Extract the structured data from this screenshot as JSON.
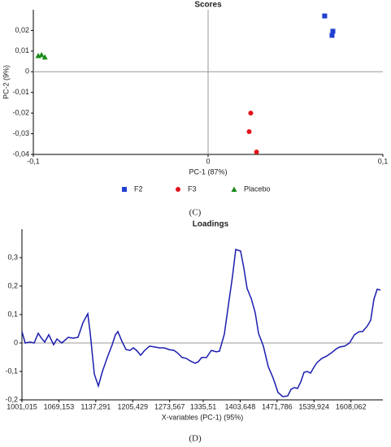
{
  "chart_data": [
    {
      "type": "scatter",
      "title": "Scores",
      "xlabel": "PC-1 (87%)",
      "ylabel": "PC-2 (9%)",
      "xlim": [
        -0.1,
        0.1
      ],
      "ylim": [
        -0.04,
        0.03
      ],
      "xticks": [
        {
          "value": -0.1,
          "label": "-0,1"
        },
        0,
        {
          "value": 0.1,
          "label": "0,1"
        }
      ],
      "yticks": [
        {
          "value": 0.02,
          "label": "0,02"
        },
        {
          "value": 0.01,
          "label": "0,01"
        },
        0,
        {
          "value": -0.01,
          "label": "-0,01"
        },
        {
          "value": -0.02,
          "label": "-0,02"
        },
        {
          "value": -0.03,
          "label": "-0,03"
        },
        {
          "value": -0.04,
          "label": "-0,04"
        }
      ],
      "series": [
        {
          "name": "F2",
          "color": "#1f3fd0",
          "marker": "square",
          "x": [
            0.0667,
            0.0714,
            0.0709
          ],
          "values": [
            0.027,
            0.0196,
            0.0176
          ]
        },
        {
          "name": "F3",
          "color": "#e0141c",
          "marker": "circle",
          "x": [
            0.0244,
            0.0235,
            0.0277
          ],
          "values": [
            -0.02,
            -0.029,
            -0.0388
          ]
        },
        {
          "name": "Placebo",
          "color": "#1a8a1a",
          "marker": "triangle",
          "x": [
            -0.0972,
            -0.0953,
            -0.0934
          ],
          "values": [
            0.0078,
            0.0082,
            0.0071
          ]
        }
      ]
    },
    {
      "type": "line",
      "title": "Loadings",
      "xlabel": "X-variables (PC-1) (95%)",
      "xlim": [
        1001,
        1667
      ],
      "ylim": [
        -0.2,
        0.4
      ],
      "xticks": [
        {
          "value": 1001.015,
          "label": "1001,015"
        },
        {
          "value": 1069.153,
          "label": "1069,153"
        },
        {
          "value": 1137.291,
          "label": "1137,291"
        },
        {
          "value": 1205.429,
          "label": "1205,429"
        },
        {
          "value": 1273.567,
          "label": "1273,567"
        },
        {
          "value": 1335.51,
          "label": "1335,51"
        },
        {
          "value": 1403.648,
          "label": "1403,648"
        },
        {
          "value": 1471.786,
          "label": "1471,786"
        },
        {
          "value": 1539.924,
          "label": "1539,924"
        },
        {
          "value": 1608.062,
          "label": "1608,062"
        }
      ],
      "yticks": [
        {
          "value": 0.3,
          "label": "0,3"
        },
        {
          "value": 0.2,
          "label": "0,2"
        },
        {
          "value": 0.1,
          "label": "0,1"
        },
        0,
        {
          "value": -0.1,
          "label": "-0,1"
        },
        {
          "value": -0.2,
          "label": "-0,2"
        }
      ],
      "color": "#1c1cb0",
      "x": [
        1001,
        1007,
        1016,
        1023.5,
        1031,
        1037,
        1043,
        1050.5,
        1059.5,
        1065.5,
        1074.5,
        1086.5,
        1095.5,
        1104.5,
        1113.5,
        1122.5,
        1127,
        1134.5,
        1142,
        1149.5,
        1158.5,
        1167.5,
        1173.5,
        1178,
        1185.5,
        1193,
        1200.5,
        1206.5,
        1212.5,
        1220,
        1227.5,
        1236.5,
        1245.5,
        1254.5,
        1263.5,
        1272.5,
        1281.5,
        1287.5,
        1296.5,
        1304,
        1311.5,
        1320.5,
        1326.5,
        1332.5,
        1341.5,
        1350.5,
        1359.5,
        1365.5,
        1374.5,
        1382,
        1389.5,
        1395.5,
        1404.5,
        1410.5,
        1416.5,
        1424,
        1431.5,
        1437.5,
        1446.5,
        1455.5,
        1464.5,
        1473.5,
        1482.5,
        1491.5,
        1497.5,
        1503.5,
        1509.5,
        1515.5,
        1521.5,
        1527.5,
        1533.5,
        1539.5,
        1545.5,
        1554.5,
        1563.5,
        1572.5,
        1581.5,
        1587.5,
        1596.5,
        1605.5,
        1614.5,
        1623.5,
        1629.5,
        1638.5,
        1644.5,
        1650.5,
        1656.5,
        1662.5
      ],
      "values": [
        0.04,
        0,
        0.003,
        0,
        0.034,
        0.017,
        0.003,
        0.029,
        -0.006,
        0.014,
        0,
        0.02,
        0.017,
        0.02,
        0.071,
        0.103,
        0.034,
        -0.109,
        -0.151,
        -0.1,
        -0.051,
        -0.006,
        0.029,
        0.04,
        0.006,
        -0.023,
        -0.026,
        -0.017,
        -0.026,
        -0.043,
        -0.026,
        -0.011,
        -0.014,
        -0.017,
        -0.017,
        -0.023,
        -0.026,
        -0.034,
        -0.051,
        -0.054,
        -0.063,
        -0.071,
        -0.066,
        -0.051,
        -0.051,
        -0.026,
        -0.031,
        -0.029,
        0.031,
        0.134,
        0.234,
        0.329,
        0.323,
        0.263,
        0.191,
        0.157,
        0.106,
        0.034,
        -0.011,
        -0.083,
        -0.123,
        -0.174,
        -0.189,
        -0.186,
        -0.163,
        -0.157,
        -0.16,
        -0.137,
        -0.103,
        -0.1,
        -0.106,
        -0.086,
        -0.069,
        -0.054,
        -0.046,
        -0.034,
        -0.02,
        -0.014,
        -0.011,
        0,
        0.029,
        0.04,
        0.04,
        0.06,
        0.08,
        0.154,
        0.189,
        0.186
      ]
    }
  ],
  "captions": [
    "(C)",
    "(D)"
  ]
}
